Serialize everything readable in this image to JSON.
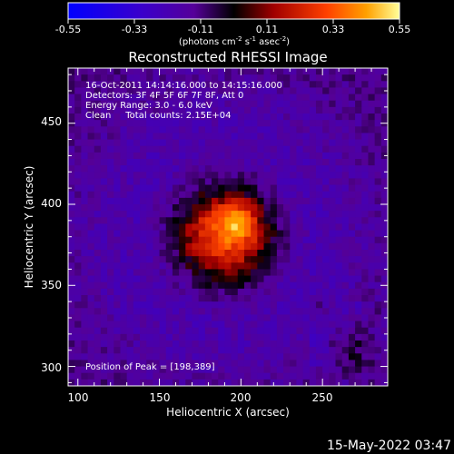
{
  "colorbar": {
    "ticks": [
      "-0.55",
      "-0.33",
      "-0.11",
      "0.11",
      "0.33",
      "0.55"
    ],
    "unit_prefix": "(photons cm",
    "unit_exp1": "-2",
    "unit_mid": " s",
    "unit_exp2": "-1",
    "unit_mid2": " asec",
    "unit_exp3": "-2",
    "unit_suffix": ")",
    "colors": [
      "#0000ff",
      "#3b00c6",
      "#5a00b0",
      "#000000",
      "#b00000",
      "#ff5000",
      "#ffb000",
      "#ffff90"
    ]
  },
  "chart_data": {
    "type": "heatmap",
    "title": "Reconstructed RHESSI Image",
    "xlabel": "Heliocentric X (arcsec)",
    "ylabel": "Heliocentric Y (arcsec)",
    "x_ticks": [
      "100",
      "150",
      "200",
      "250"
    ],
    "y_ticks": [
      "300",
      "350",
      "400",
      "450"
    ],
    "x_tick_values": [
      100,
      150,
      200,
      250
    ],
    "y_tick_values": [
      300,
      350,
      400,
      450
    ],
    "xlim": [
      94,
      290
    ],
    "ylim": [
      288,
      484
    ],
    "value_range": [
      -0.55,
      0.55
    ],
    "peak": [
      198,
      389
    ],
    "annotations": {
      "time": "16-Oct-2011 14:14:16.000 to 14:15:16.000",
      "detectors": "Detectors: 3F 4F 5F 6F 7F 8F, Att 0",
      "energy": "Energy Range: 3.0 - 6.0 keV",
      "method": "Clean     Total counts: 2.15E+04",
      "peak": "Position of Peak = [198,389]"
    }
  },
  "footer": {
    "timestamp": "15-May-2022 03:47"
  }
}
